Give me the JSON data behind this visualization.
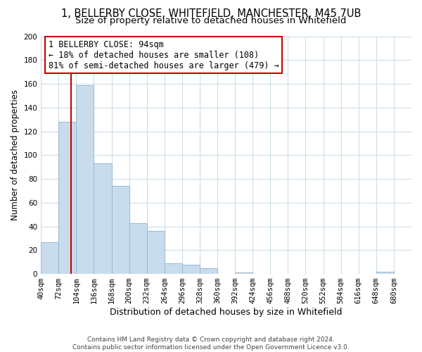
{
  "title_line1": "1, BELLERBY CLOSE, WHITEFIELD, MANCHESTER, M45 7UB",
  "title_line2": "Size of property relative to detached houses in Whitefield",
  "xlabel": "Distribution of detached houses by size in Whitefield",
  "ylabel": "Number of detached properties",
  "bar_color": "#c8dced",
  "bar_edge_color": "#9ab8d0",
  "vline_color": "#cc0000",
  "vline_x": 94,
  "bin_edges": [
    40,
    72,
    104,
    136,
    168,
    200,
    232,
    264,
    296,
    328,
    360,
    392,
    424,
    456,
    488,
    520,
    552,
    584,
    616,
    648,
    680
  ],
  "bar_heights": [
    27,
    128,
    159,
    93,
    74,
    43,
    36,
    9,
    8,
    5,
    0,
    1,
    0,
    0,
    0,
    0,
    0,
    0,
    0,
    2
  ],
  "ylim": [
    0,
    200
  ],
  "yticks": [
    0,
    20,
    40,
    60,
    80,
    100,
    120,
    140,
    160,
    180,
    200
  ],
  "annotation_text_line1": "1 BELLERBY CLOSE: 94sqm",
  "annotation_text_line2": "← 18% of detached houses are smaller (108)",
  "annotation_text_line3": "81% of semi-detached houses are larger (479) →",
  "footer_line1": "Contains HM Land Registry data © Crown copyright and database right 2024.",
  "footer_line2": "Contains public sector information licensed under the Open Government Licence v3.0.",
  "background_color": "#ffffff",
  "grid_color": "#ccdde8",
  "title_fontsize": 10.5,
  "subtitle_fontsize": 9.5,
  "tick_label_fontsize": 7.5,
  "ylabel_fontsize": 8.5,
  "xlabel_fontsize": 9,
  "footer_fontsize": 6.5,
  "annotation_fontsize": 8.5
}
